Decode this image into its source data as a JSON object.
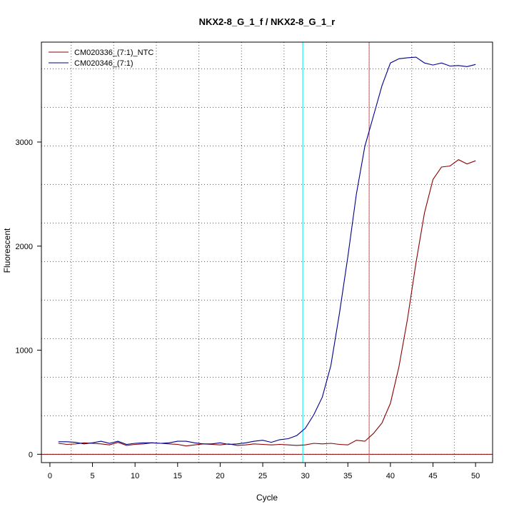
{
  "chart_data": {
    "type": "line",
    "title": "NKX2-8_G_1_f / NKX2-8_G_1_r",
    "xlabel": "Cycle",
    "ylabel": "Fluorescent",
    "xlim": [
      -1,
      52
    ],
    "ylim": [
      -80,
      3960
    ],
    "x_ticks": [
      0,
      5,
      10,
      15,
      20,
      25,
      30,
      35,
      40,
      45,
      50
    ],
    "y_ticks": [
      0,
      1000,
      2000,
      3000
    ],
    "grid": true,
    "legend_position": "top-left",
    "x": [
      1,
      2,
      3,
      4,
      5,
      6,
      7,
      8,
      9,
      10,
      11,
      12,
      13,
      14,
      15,
      16,
      17,
      18,
      19,
      20,
      21,
      22,
      23,
      24,
      25,
      26,
      27,
      28,
      29,
      30,
      31,
      32,
      33,
      34,
      35,
      36,
      37,
      38,
      39,
      40,
      41,
      42,
      43,
      44,
      45,
      46,
      47,
      48,
      49,
      50
    ],
    "series": [
      {
        "name": "CM020336_(7:1)_NTC",
        "color": "#8b0000",
        "values": [
          105,
          95,
          100,
          110,
          105,
          100,
          90,
          115,
          85,
          95,
          100,
          110,
          105,
          100,
          95,
          80,
          90,
          100,
          95,
          90,
          100,
          85,
          90,
          100,
          95,
          90,
          95,
          90,
          85,
          90,
          105,
          100,
          105,
          95,
          90,
          135,
          125,
          200,
          300,
          490,
          840,
          1300,
          1840,
          2320,
          2640,
          2760,
          2770,
          2830,
          2790,
          2820
        ]
      },
      {
        "name": "CM020346_(7:1)",
        "color": "#00008b",
        "values": [
          120,
          120,
          115,
          100,
          110,
          125,
          105,
          125,
          95,
          105,
          110,
          110,
          105,
          110,
          125,
          125,
          110,
          100,
          100,
          110,
          95,
          100,
          110,
          125,
          135,
          115,
          140,
          150,
          180,
          250,
          380,
          550,
          850,
          1350,
          1900,
          2500,
          2960,
          3250,
          3540,
          3760,
          3800,
          3810,
          3815,
          3760,
          3740,
          3760,
          3730,
          3735,
          3725,
          3745
        ]
      }
    ],
    "threshold_cycle": 29.7,
    "threshold_color": "#00ffff",
    "marker_cycle": 37.5,
    "marker_color": "#cd5c5c",
    "baseline": 0,
    "baseline_color": "#8b0000"
  }
}
